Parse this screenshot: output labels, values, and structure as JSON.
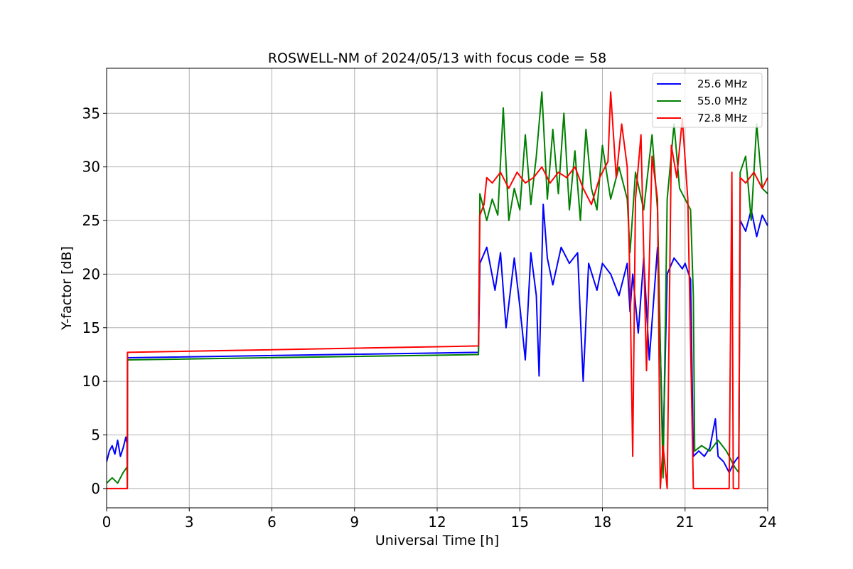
{
  "chart_data": {
    "type": "line",
    "title": "ROSWELL-NM of 2024/05/13 with focus code = 58",
    "xlabel": "Universal Time [h]",
    "ylabel": "Y-factor [dB]",
    "xlim": [
      0,
      24
    ],
    "ylim": [
      -1.8,
      39.2
    ],
    "xticks": [
      0,
      3,
      6,
      9,
      12,
      15,
      18,
      21,
      24
    ],
    "yticks": [
      0,
      5,
      10,
      15,
      20,
      25,
      30,
      35
    ],
    "grid": true,
    "legend_position": "top-right",
    "series": [
      {
        "name": "25.6 MHz",
        "color": "#0000ff",
        "points": [
          [
            0.0,
            2.5
          ],
          [
            0.1,
            3.5
          ],
          [
            0.2,
            4.0
          ],
          [
            0.3,
            3.2
          ],
          [
            0.4,
            4.5
          ],
          [
            0.5,
            3.0
          ],
          [
            0.6,
            3.8
          ],
          [
            0.7,
            4.8
          ],
          [
            0.74,
            4.2
          ],
          [
            0.75,
            0.0
          ],
          [
            0.76,
            12.2
          ],
          [
            13.5,
            12.7
          ],
          [
            13.55,
            21.0
          ],
          [
            13.8,
            22.5
          ],
          [
            14.1,
            18.5
          ],
          [
            14.3,
            22.0
          ],
          [
            14.5,
            15.0
          ],
          [
            14.8,
            21.5
          ],
          [
            15.0,
            17.0
          ],
          [
            15.2,
            12.0
          ],
          [
            15.4,
            22.0
          ],
          [
            15.6,
            18.0
          ],
          [
            15.7,
            10.5
          ],
          [
            15.85,
            26.5
          ],
          [
            16.0,
            21.5
          ],
          [
            16.2,
            19.0
          ],
          [
            16.5,
            22.5
          ],
          [
            16.8,
            21.0
          ],
          [
            17.1,
            22.0
          ],
          [
            17.3,
            10.0
          ],
          [
            17.5,
            21.0
          ],
          [
            17.8,
            18.5
          ],
          [
            18.0,
            21.0
          ],
          [
            18.3,
            20.0
          ],
          [
            18.6,
            18.0
          ],
          [
            18.9,
            21.0
          ],
          [
            19.0,
            16.5
          ],
          [
            19.1,
            20.0
          ],
          [
            19.3,
            14.5
          ],
          [
            19.5,
            21.5
          ],
          [
            19.7,
            12.0
          ],
          [
            20.0,
            22.5
          ],
          [
            20.2,
            3.5
          ],
          [
            20.35,
            20.0
          ],
          [
            20.6,
            21.5
          ],
          [
            20.9,
            20.5
          ],
          [
            21.0,
            21.0
          ],
          [
            21.2,
            19.5
          ],
          [
            21.3,
            3.0
          ],
          [
            21.5,
            3.5
          ],
          [
            21.7,
            3.0
          ],
          [
            21.9,
            3.8
          ],
          [
            22.1,
            6.5
          ],
          [
            22.2,
            3.0
          ],
          [
            22.4,
            2.5
          ],
          [
            22.6,
            1.5
          ],
          [
            22.8,
            2.5
          ],
          [
            22.95,
            3.0
          ],
          [
            23.0,
            25.0
          ],
          [
            23.2,
            24.0
          ],
          [
            23.4,
            26.0
          ],
          [
            23.6,
            23.5
          ],
          [
            23.8,
            25.5
          ],
          [
            24.0,
            24.5
          ]
        ]
      },
      {
        "name": "55.0 MHz",
        "color": "#008000",
        "points": [
          [
            0.0,
            0.5
          ],
          [
            0.2,
            1.0
          ],
          [
            0.4,
            0.5
          ],
          [
            0.6,
            1.5
          ],
          [
            0.74,
            2.0
          ],
          [
            0.75,
            0.0
          ],
          [
            0.76,
            12.0
          ],
          [
            13.5,
            12.5
          ],
          [
            13.55,
            27.5
          ],
          [
            13.8,
            25.0
          ],
          [
            14.0,
            27.0
          ],
          [
            14.2,
            25.5
          ],
          [
            14.4,
            35.5
          ],
          [
            14.6,
            25.0
          ],
          [
            14.8,
            28.0
          ],
          [
            15.0,
            26.0
          ],
          [
            15.2,
            33.0
          ],
          [
            15.4,
            26.5
          ],
          [
            15.6,
            31.0
          ],
          [
            15.8,
            37.0
          ],
          [
            16.0,
            27.0
          ],
          [
            16.2,
            33.5
          ],
          [
            16.4,
            27.5
          ],
          [
            16.6,
            35.0
          ],
          [
            16.8,
            26.0
          ],
          [
            17.0,
            31.5
          ],
          [
            17.2,
            25.0
          ],
          [
            17.4,
            33.5
          ],
          [
            17.6,
            28.0
          ],
          [
            17.8,
            26.0
          ],
          [
            18.0,
            32.0
          ],
          [
            18.3,
            27.0
          ],
          [
            18.6,
            30.0
          ],
          [
            18.9,
            27.0
          ],
          [
            19.0,
            22.0
          ],
          [
            19.2,
            29.5
          ],
          [
            19.5,
            26.0
          ],
          [
            19.8,
            33.0
          ],
          [
            20.0,
            26.0
          ],
          [
            20.2,
            1.0
          ],
          [
            20.35,
            27.0
          ],
          [
            20.6,
            34.0
          ],
          [
            20.8,
            28.0
          ],
          [
            21.0,
            27.0
          ],
          [
            21.2,
            26.0
          ],
          [
            21.3,
            18.0
          ],
          [
            21.35,
            3.5
          ],
          [
            21.6,
            4.0
          ],
          [
            21.9,
            3.5
          ],
          [
            22.2,
            4.5
          ],
          [
            22.5,
            3.5
          ],
          [
            22.8,
            2.0
          ],
          [
            22.95,
            1.5
          ],
          [
            23.0,
            29.5
          ],
          [
            23.2,
            31.0
          ],
          [
            23.4,
            25.0
          ],
          [
            23.6,
            34.0
          ],
          [
            23.8,
            28.0
          ],
          [
            24.0,
            27.5
          ]
        ]
      },
      {
        "name": "72.8 MHz",
        "color": "#ff0000",
        "points": [
          [
            0.0,
            0.0
          ],
          [
            0.74,
            0.0
          ],
          [
            0.75,
            0.0
          ],
          [
            0.76,
            12.7
          ],
          [
            13.5,
            13.3
          ],
          [
            13.55,
            25.5
          ],
          [
            13.7,
            26.5
          ],
          [
            13.8,
            29.0
          ],
          [
            14.0,
            28.5
          ],
          [
            14.3,
            29.5
          ],
          [
            14.6,
            28.0
          ],
          [
            14.9,
            29.5
          ],
          [
            15.2,
            28.5
          ],
          [
            15.5,
            29.0
          ],
          [
            15.8,
            30.0
          ],
          [
            16.1,
            28.5
          ],
          [
            16.4,
            29.5
          ],
          [
            16.7,
            29.0
          ],
          [
            17.0,
            30.0
          ],
          [
            17.3,
            28.0
          ],
          [
            17.6,
            26.5
          ],
          [
            17.9,
            29.0
          ],
          [
            18.2,
            30.5
          ],
          [
            18.3,
            37.0
          ],
          [
            18.5,
            29.0
          ],
          [
            18.7,
            34.0
          ],
          [
            18.9,
            30.0
          ],
          [
            19.0,
            19.0
          ],
          [
            19.1,
            3.0
          ],
          [
            19.2,
            27.0
          ],
          [
            19.4,
            33.0
          ],
          [
            19.6,
            11.0
          ],
          [
            19.8,
            31.0
          ],
          [
            20.0,
            27.0
          ],
          [
            20.1,
            0.0
          ],
          [
            20.2,
            4.0
          ],
          [
            20.35,
            0.0
          ],
          [
            20.5,
            32.0
          ],
          [
            20.7,
            29.0
          ],
          [
            20.9,
            34.5
          ],
          [
            21.1,
            27.0
          ],
          [
            21.3,
            0.0
          ],
          [
            22.0,
            0.0
          ],
          [
            22.6,
            0.0
          ],
          [
            22.7,
            29.5
          ],
          [
            22.75,
            0.0
          ],
          [
            22.95,
            0.0
          ],
          [
            23.0,
            29.0
          ],
          [
            23.2,
            28.5
          ],
          [
            23.5,
            29.5
          ],
          [
            23.8,
            28.0
          ],
          [
            24.0,
            29.0
          ]
        ]
      }
    ]
  }
}
